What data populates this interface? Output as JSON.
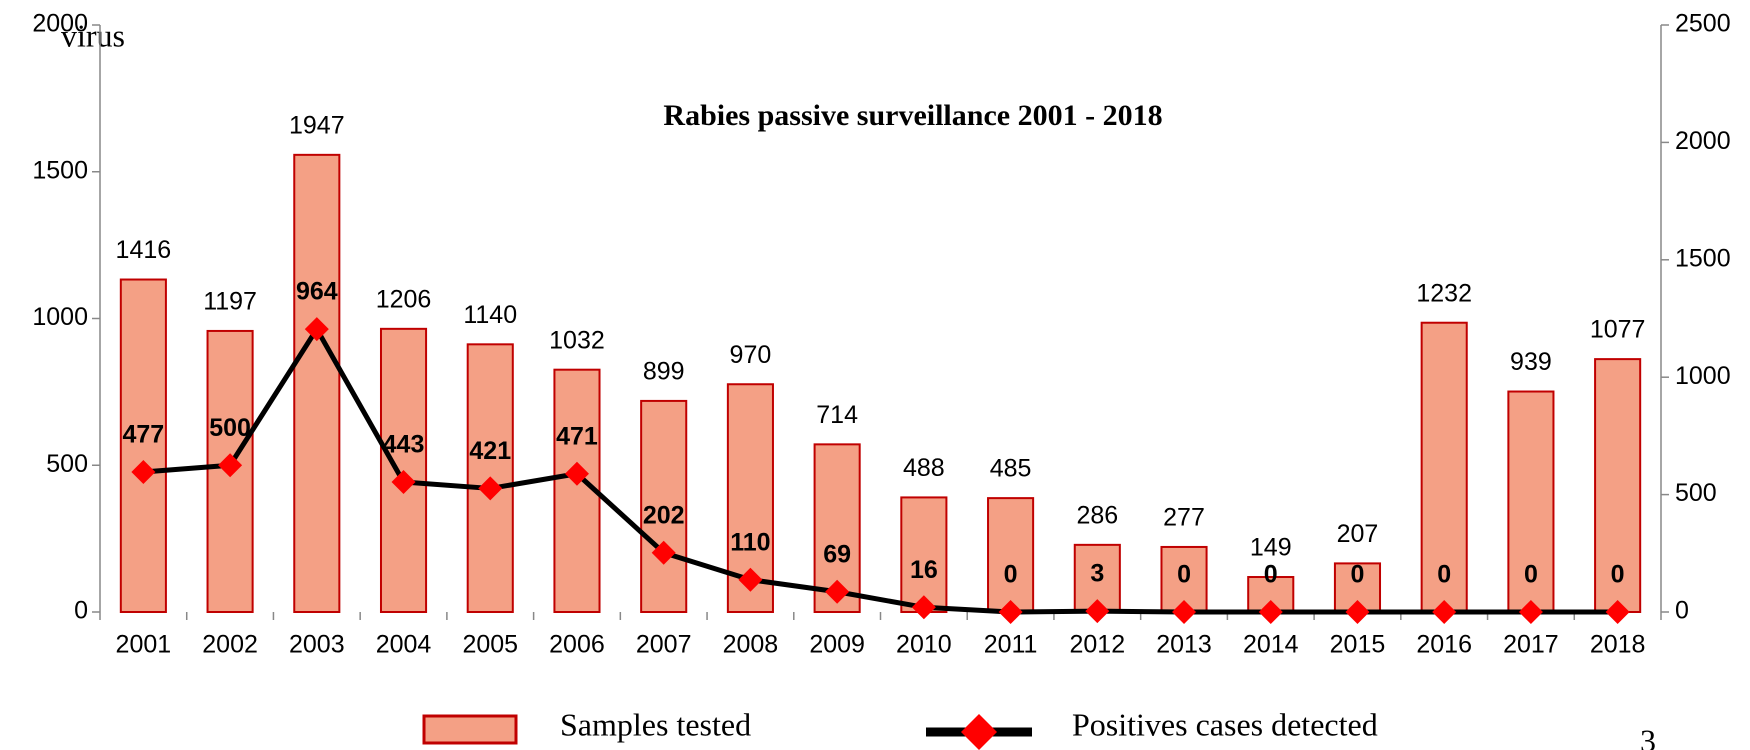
{
  "header": {
    "fragment": "virus",
    "page_number": "3"
  },
  "chart_data": {
    "type": "bar",
    "title": "Rabies passive surveillance 2001 - 2018",
    "categories": [
      "2001",
      "2002",
      "2003",
      "2004",
      "2005",
      "2006",
      "2007",
      "2008",
      "2009",
      "2010",
      "2011",
      "2012",
      "2013",
      "2014",
      "2015",
      "2016",
      "2017",
      "2018"
    ],
    "series": [
      {
        "name": "Samples tested",
        "type": "bar",
        "axis": "y2",
        "color": "#f4a085",
        "edge_color": "#c00000",
        "values": [
          1416,
          1197,
          1947,
          1206,
          1140,
          1032,
          899,
          970,
          714,
          488,
          485,
          286,
          277,
          149,
          207,
          1232,
          939,
          1077
        ]
      },
      {
        "name": "Positives cases detected",
        "type": "line",
        "axis": "y",
        "color": "#000000",
        "marker_color": "#ff0000",
        "values": [
          477,
          500,
          964,
          443,
          421,
          471,
          202,
          110,
          69,
          16,
          0,
          3,
          0,
          0,
          0,
          0,
          0,
          0
        ]
      }
    ],
    "ylim": [
      0,
      2000
    ],
    "yticks": [
      0,
      500,
      1000,
      1500,
      2000
    ],
    "y2lim": [
      0,
      2500
    ],
    "y2ticks": [
      0,
      500,
      1000,
      1500,
      2000,
      2500
    ],
    "legend": "bottom",
    "grid": false
  }
}
